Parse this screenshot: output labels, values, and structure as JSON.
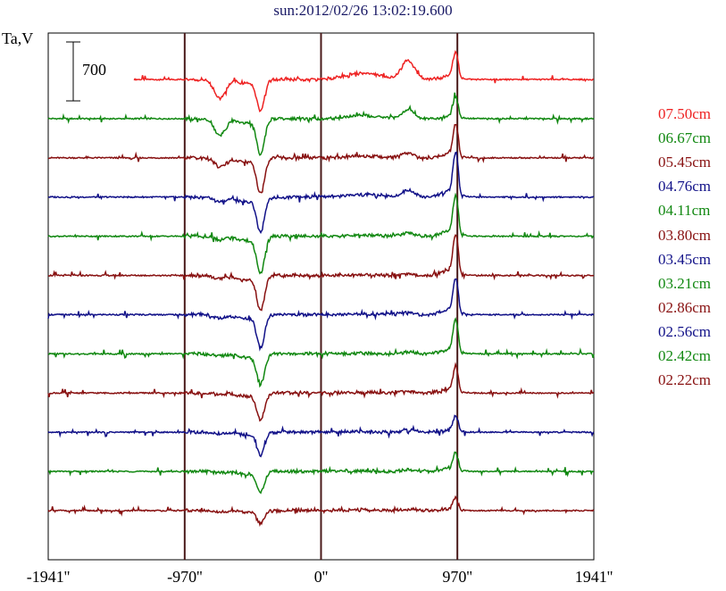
{
  "title": "sun:2012/02/26 13:02:19.600",
  "ylabel": "Ta,V",
  "scale_bar_label": "700",
  "chart_data": {
    "type": "line",
    "title": "sun:2012/02/26 13:02:19.600",
    "ylabel": "Ta,V",
    "xlabel": "",
    "xlim": [
      -1941,
      1941
    ],
    "x_ticks": [
      "-1941''",
      "-970''",
      "0''",
      "970''",
      "1941''"
    ],
    "x_tick_values": [
      -1941,
      -970,
      0,
      970,
      1941
    ],
    "vertical_lines": [
      -970,
      0,
      970
    ],
    "scale_bar": 700,
    "grid": false,
    "legend_position": "right",
    "series": [
      {
        "name": "07.50cm",
        "color": "#ee2222",
        "features": {
          "dip1": 0.55,
          "dip2": 0.75,
          "hump": 0.55,
          "peak": 0.75
        }
      },
      {
        "name": "06.67cm",
        "color": "#118811",
        "features": {
          "dip1": 0.5,
          "dip2": 0.85,
          "hump": 0.25,
          "peak": 0.6
        }
      },
      {
        "name": "05.45cm",
        "color": "#881111",
        "features": {
          "dip1": 0.25,
          "dip2": 0.85,
          "hump": 0.15,
          "peak": 0.9
        }
      },
      {
        "name": "04.76cm",
        "color": "#111188",
        "features": {
          "dip1": 0.15,
          "dip2": 0.85,
          "hump": 0.2,
          "peak": 1.2
        }
      },
      {
        "name": "04.11cm",
        "color": "#118811",
        "features": {
          "dip1": 0.1,
          "dip2": 0.9,
          "hump": 0.1,
          "peak": 1.1
        }
      },
      {
        "name": "03.80cm",
        "color": "#881111",
        "features": {
          "dip1": 0.1,
          "dip2": 0.85,
          "hump": 0.05,
          "peak": 1.1
        }
      },
      {
        "name": "03.45cm",
        "color": "#111188",
        "features": {
          "dip1": 0.1,
          "dip2": 0.8,
          "hump": 0.05,
          "peak": 0.95
        }
      },
      {
        "name": "03.21cm",
        "color": "#118811",
        "features": {
          "dip1": 0.05,
          "dip2": 0.75,
          "hump": 0.05,
          "peak": 0.9
        }
      },
      {
        "name": "02.86cm",
        "color": "#881111",
        "features": {
          "dip1": 0.05,
          "dip2": 0.65,
          "hump": 0.05,
          "peak": 0.7
        }
      },
      {
        "name": "02.56cm",
        "color": "#111188",
        "features": {
          "dip1": 0.05,
          "dip2": 0.55,
          "hump": 0.05,
          "peak": 0.45
        }
      },
      {
        "name": "02.42cm",
        "color": "#118811",
        "features": {
          "dip1": 0.05,
          "dip2": 0.5,
          "hump": 0.05,
          "peak": 0.5
        }
      },
      {
        "name": "02.22cm",
        "color": "#881111",
        "features": {
          "dip1": 0.05,
          "dip2": 0.3,
          "hump": 0.05,
          "peak": 0.35
        }
      }
    ]
  }
}
